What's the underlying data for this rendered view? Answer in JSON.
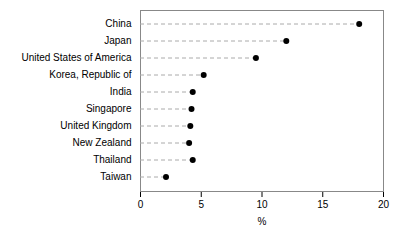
{
  "chart_data": {
    "type": "lollipop",
    "orientation": "horizontal",
    "xlabel": "%",
    "categories": [
      "China",
      "Japan",
      "United States of America",
      "Korea, Republic of",
      "India",
      "Singapore",
      "United Kingdom",
      "New Zealand",
      "Thailand",
      "Taiwan"
    ],
    "values": [
      18.0,
      12.0,
      9.5,
      5.2,
      4.3,
      4.2,
      4.1,
      4.0,
      4.3,
      2.1
    ],
    "color": "#000000",
    "line_style": "dashed",
    "xlim": [
      0,
      20
    ],
    "xticks": [
      0,
      5,
      10,
      15,
      20
    ],
    "grid": false
  }
}
